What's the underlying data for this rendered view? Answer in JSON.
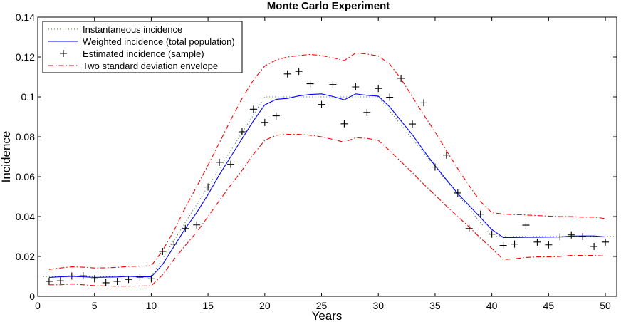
{
  "chart_data": {
    "type": "line",
    "title": "Monte Carlo Experiment",
    "xlabel": "Years",
    "ylabel": "Incidence",
    "xlim": [
      0,
      51
    ],
    "ylim": [
      0,
      0.14
    ],
    "xticks": [
      0,
      5,
      10,
      15,
      20,
      25,
      30,
      35,
      40,
      45,
      50
    ],
    "yticks": [
      0,
      0.02,
      0.04,
      0.06,
      0.08,
      0.1,
      0.12,
      0.14
    ],
    "ytick_labels": [
      "0",
      "0.02",
      "0.04",
      "0.06",
      "0.08",
      "0.1",
      "0.12",
      "0.14"
    ],
    "grid": false,
    "legend_position": "top-left",
    "series": [
      {
        "name": "Instantaneous incidence",
        "style": "dotted",
        "color": "#3a7a3a",
        "x": [
          0,
          10,
          20,
          30,
          40,
          51
        ],
        "y": [
          0.01,
          0.01,
          0.1,
          0.1,
          0.03,
          0.03
        ]
      },
      {
        "name": "Weighted incidence (total population)",
        "style": "solid",
        "color": "#0000ff",
        "x": [
          1,
          2,
          3,
          4,
          5,
          6,
          7,
          8,
          9,
          10,
          11,
          12,
          13,
          14,
          15,
          16,
          17,
          18,
          19,
          20,
          21,
          22,
          23,
          24,
          25,
          26,
          27,
          28,
          29,
          30,
          31,
          32,
          33,
          34,
          35,
          36,
          37,
          38,
          39,
          40,
          41,
          42,
          43,
          44,
          45,
          46,
          47,
          48,
          49,
          50
        ],
        "y": [
          0.0095,
          0.0098,
          0.01,
          0.0098,
          0.0095,
          0.0096,
          0.0097,
          0.01,
          0.0098,
          0.0098,
          0.016,
          0.025,
          0.034,
          0.042,
          0.051,
          0.061,
          0.07,
          0.079,
          0.088,
          0.096,
          0.0988,
          0.0992,
          0.1005,
          0.1012,
          0.1015,
          0.1002,
          0.0985,
          0.1015,
          0.1008,
          0.1004,
          0.095,
          0.088,
          0.081,
          0.073,
          0.0655,
          0.0585,
          0.0515,
          0.0455,
          0.0395,
          0.0335,
          0.0295,
          0.0295,
          0.0296,
          0.0296,
          0.0297,
          0.0298,
          0.0302,
          0.0303,
          0.0303,
          0.0298
        ]
      },
      {
        "name": "Estimated incidence (sample)",
        "style": "marker",
        "color": "#000000",
        "x": [
          1,
          2,
          3,
          4,
          5,
          6,
          7,
          8,
          9,
          10,
          11,
          12,
          13,
          14,
          15,
          16,
          17,
          18,
          19,
          20,
          21,
          22,
          23,
          24,
          25,
          26,
          27,
          28,
          29,
          30,
          31,
          32,
          33,
          34,
          35,
          36,
          37,
          38,
          39,
          40,
          41,
          42,
          43,
          44,
          45,
          46,
          47,
          48,
          49,
          50
        ],
        "y": [
          0.0075,
          0.0078,
          0.0102,
          0.0103,
          0.0088,
          0.0068,
          0.0075,
          0.0085,
          0.0096,
          0.0088,
          0.0225,
          0.0262,
          0.034,
          0.0358,
          0.0548,
          0.0672,
          0.0662,
          0.0825,
          0.0938,
          0.0872,
          0.0905,
          0.1115,
          0.1128,
          0.1066,
          0.0962,
          0.1062,
          0.0865,
          0.105,
          0.0922,
          0.1042,
          0.0998,
          0.1093,
          0.0864,
          0.097,
          0.0648,
          0.0708,
          0.0518,
          0.034,
          0.0412,
          0.0312,
          0.0255,
          0.0262,
          0.0357,
          0.0272,
          0.0258,
          0.0298,
          0.0308,
          0.03,
          0.025,
          0.0272
        ]
      },
      {
        "name": "Two standard deviation envelope",
        "style": "dashdot",
        "color": "#ff0000",
        "x": [
          1,
          2,
          3,
          4,
          5,
          6,
          7,
          8,
          9,
          10,
          11,
          12,
          13,
          14,
          15,
          16,
          17,
          18,
          19,
          20,
          21,
          22,
          23,
          24,
          25,
          26,
          27,
          28,
          29,
          30,
          31,
          32,
          33,
          34,
          35,
          36,
          37,
          38,
          39,
          40,
          41,
          42,
          43,
          44,
          45,
          46,
          47,
          48,
          49,
          50
        ],
        "y": [
          0.0135,
          0.0142,
          0.0148,
          0.0146,
          0.0142,
          0.0143,
          0.0145,
          0.015,
          0.0151,
          0.0153,
          0.023,
          0.033,
          0.0445,
          0.055,
          0.0658,
          0.077,
          0.0885,
          0.0992,
          0.1085,
          0.1155,
          0.1185,
          0.12,
          0.1207,
          0.1213,
          0.1207,
          0.1196,
          0.1182,
          0.122,
          0.1215,
          0.1205,
          0.1165,
          0.109,
          0.1,
          0.091,
          0.0825,
          0.073,
          0.064,
          0.0555,
          0.0475,
          0.042,
          0.0412,
          0.041,
          0.0408,
          0.0405,
          0.0402,
          0.04,
          0.04,
          0.0397,
          0.0397,
          0.039
        ]
      },
      {
        "name": "",
        "style": "dashdot",
        "color": "#ff0000",
        "x": [
          1,
          2,
          3,
          4,
          5,
          6,
          7,
          8,
          9,
          10,
          11,
          12,
          13,
          14,
          15,
          16,
          17,
          18,
          19,
          20,
          21,
          22,
          23,
          24,
          25,
          26,
          27,
          28,
          29,
          30,
          31,
          32,
          33,
          34,
          35,
          36,
          37,
          38,
          39,
          40,
          41,
          42,
          43,
          44,
          45,
          46,
          47,
          48,
          49,
          50
        ],
        "y": [
          0.0058,
          0.0058,
          0.0062,
          0.0058,
          0.0054,
          0.0052,
          0.0051,
          0.0051,
          0.0052,
          0.0053,
          0.0108,
          0.0185,
          0.0255,
          0.0322,
          0.04,
          0.048,
          0.0558,
          0.0632,
          0.0712,
          0.0782,
          0.0808,
          0.0812,
          0.0812,
          0.0808,
          0.08,
          0.0787,
          0.0773,
          0.0795,
          0.0792,
          0.0782,
          0.073,
          0.0675,
          0.062,
          0.0562,
          0.0508,
          0.0452,
          0.04,
          0.0348,
          0.0292,
          0.024,
          0.0185,
          0.0188,
          0.0195,
          0.0198,
          0.0198,
          0.02,
          0.0205,
          0.0205,
          0.0205,
          0.0202
        ]
      }
    ]
  }
}
